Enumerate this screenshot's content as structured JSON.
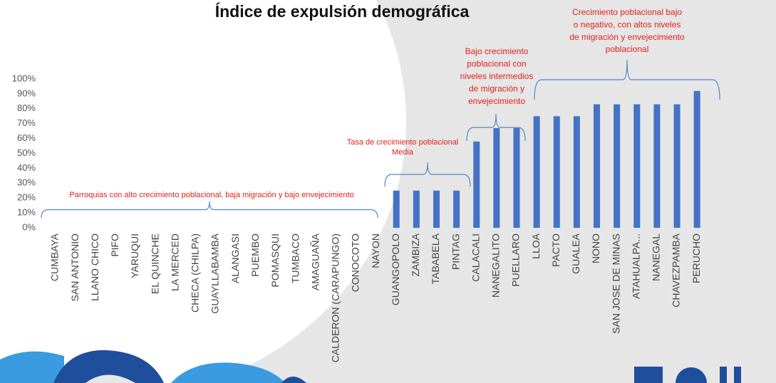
{
  "chart_data": {
    "type": "bar",
    "title": "Índice de expulsión demográfica",
    "categories": [
      "CUMBAYA",
      "SAN ANTONIO",
      "LLANO CHICO",
      "PIFO",
      "YARUQUI",
      "EL QUINCHE",
      "LA MERCED",
      "CHECA (CHILPA)",
      "GUAYLLABAMBA",
      "ALANGASI",
      "PUEMBO",
      "POMASQUI",
      "TUMBACO",
      "AMAGUAÑA",
      "CALDERON (CARAPUNGO)",
      "CONOCOTO",
      "NAYON",
      "GUANGOPOLO",
      "ZAMBIZA",
      "TABABELA",
      "PINTAG",
      "CALACALI",
      "NANEGALITO",
      "PUELLARO",
      "LLOA",
      "PACTO",
      "GUALEA",
      "NONO",
      "SAN JOSE DE MINAS",
      "ATAHUALPA...",
      "NANEGAL",
      "CHAVEZPAMBA",
      "PERUCHO"
    ],
    "values": [
      0,
      0,
      0,
      0,
      0,
      0,
      0,
      0,
      0,
      0,
      0,
      0,
      0,
      0,
      0,
      0,
      0,
      25,
      25,
      25,
      25,
      58,
      67,
      67,
      75,
      75,
      75,
      83,
      83,
      83,
      83,
      83,
      92
    ],
    "color": "#4472c4",
    "ylim": [
      0,
      100
    ],
    "yticks": [
      {
        "value": 0,
        "label": "0%"
      },
      {
        "value": 10,
        "label": "10%"
      },
      {
        "value": 20,
        "label": "20%"
      },
      {
        "value": 30,
        "label": "30%"
      },
      {
        "value": 40,
        "label": "40%"
      },
      {
        "value": 50,
        "label": "50%"
      },
      {
        "value": 60,
        "label": "60%"
      },
      {
        "value": 70,
        "label": "70%"
      },
      {
        "value": 80,
        "label": "80%"
      },
      {
        "value": 90,
        "label": "90%"
      },
      {
        "value": 100,
        "label": "100%"
      }
    ],
    "annotations": [
      {
        "lines": [
          "Parroquias con alto crecimiento poblacional, baja migración y bajo envejecimiento"
        ]
      },
      {
        "lines": [
          "Tasa de crecimiento poblacional",
          "Media"
        ]
      },
      {
        "lines": [
          "Bajo crecimiento",
          "poblacional con",
          "niveles intermedios",
          "de migración y",
          "envejecimiento"
        ]
      },
      {
        "lines": [
          "Crecimiento poblacional bajo",
          "o negativo, con altos niveles",
          "de migración y envejecimiento",
          "poblacional"
        ]
      }
    ]
  }
}
